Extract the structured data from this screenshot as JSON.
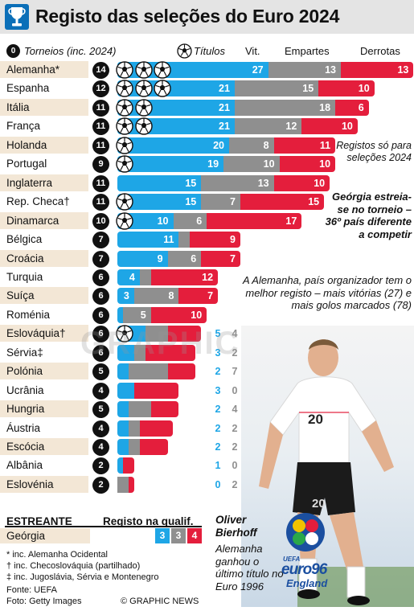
{
  "header": {
    "title": "Registo das seleções do Euro 2024"
  },
  "columns": {
    "zero_badge": "0",
    "tournaments": "Torneios (inc. 2024)",
    "titles": "Títulos",
    "wins": "Vit.",
    "draws": "Empartes",
    "losses": "Derrotas"
  },
  "chart_data": {
    "type": "bar",
    "stacked": true,
    "series_colors": {
      "wins": "#1ea6e6",
      "draws": "#8f8f8f",
      "losses": "#e41e3c"
    },
    "rows": [
      {
        "team": "Alemanha*",
        "tournaments": "14",
        "titles": 3,
        "wins": 27,
        "draws": 13,
        "losses": 13
      },
      {
        "team": "Espanha",
        "tournaments": "12",
        "titles": 3,
        "wins": 21,
        "draws": 15,
        "losses": 10
      },
      {
        "team": "Itália",
        "tournaments": "11",
        "titles": 2,
        "wins": 21,
        "draws": 18,
        "losses": 6
      },
      {
        "team": "França",
        "tournaments": "11",
        "titles": 2,
        "wins": 21,
        "draws": 12,
        "losses": 10
      },
      {
        "team": "Holanda",
        "tournaments": "11",
        "titles": 1,
        "wins": 20,
        "draws": 8,
        "losses": 11
      },
      {
        "team": "Portugal",
        "tournaments": "9",
        "titles": 1,
        "wins": 19,
        "draws": 10,
        "losses": 10
      },
      {
        "team": "Inglaterra",
        "tournaments": "11",
        "titles": 0,
        "wins": 15,
        "draws": 13,
        "losses": 10
      },
      {
        "team": "Rep. Checa†",
        "tournaments": "11",
        "titles": 1,
        "wins": 15,
        "draws": 7,
        "losses": 15
      },
      {
        "team": "Dinamarca",
        "tournaments": "10",
        "titles": 1,
        "wins": 10,
        "draws": 6,
        "losses": 17
      },
      {
        "team": "Bélgica",
        "tournaments": "7",
        "titles": 0,
        "wins": 11,
        "draws": 2,
        "losses": 9
      },
      {
        "team": "Croácia",
        "tournaments": "7",
        "titles": 0,
        "wins": 9,
        "draws": 6,
        "losses": 7
      },
      {
        "team": "Turquia",
        "tournaments": "6",
        "titles": 0,
        "wins": 4,
        "draws": 2,
        "losses": 12
      },
      {
        "team": "Suíça",
        "tournaments": "6",
        "titles": 0,
        "wins": 3,
        "draws": 8,
        "losses": 7
      },
      {
        "team": "Roménia",
        "tournaments": "6",
        "titles": 0,
        "wins": 1,
        "draws": 5,
        "losses": 10
      },
      {
        "team": "Eslováquia†",
        "tournaments": "6",
        "titles": 1,
        "wins": 5,
        "draws": 4,
        "losses": 6
      },
      {
        "team": "Sérvia‡",
        "tournaments": "6",
        "titles": 0,
        "wins": 3,
        "draws": 2,
        "losses": 9
      },
      {
        "team": "Polónia",
        "tournaments": "5",
        "titles": 0,
        "wins": 2,
        "draws": 7,
        "losses": 5
      },
      {
        "team": "Ucrânia",
        "tournaments": "4",
        "titles": 0,
        "wins": 3,
        "draws": 0,
        "losses": 8
      },
      {
        "team": "Hungria",
        "tournaments": "5",
        "titles": 0,
        "wins": 2,
        "draws": 4,
        "losses": 5
      },
      {
        "team": "Áustria",
        "tournaments": "4",
        "titles": 0,
        "wins": 2,
        "draws": 2,
        "losses": 6
      },
      {
        "team": "Escócia",
        "tournaments": "4",
        "titles": 0,
        "wins": 2,
        "draws": 2,
        "losses": 5
      },
      {
        "team": "Albânia",
        "tournaments": "2",
        "titles": 0,
        "wins": 1,
        "draws": 0,
        "losses": 2
      },
      {
        "team": "Eslovénia",
        "tournaments": "2",
        "titles": 0,
        "wins": 0,
        "draws": 2,
        "losses": 1
      }
    ],
    "debutant": {
      "team": "Geórgia",
      "wins": 3,
      "draws": 3,
      "losses": 4
    }
  },
  "notes": {
    "registos": "Registos só para seleções 2024",
    "georgia": "Geórgia estreia-se no torneio – 36º país diferente a competir",
    "alemanha": "A Alemanha, país organizador tem o melhor registo – mais vitórias (27) e mais golos marcados (78)"
  },
  "debutant_section": {
    "title": "ESTREANTE",
    "qual_title": "Registo na qualif."
  },
  "footnotes": [
    "* inc. Alemanha Ocidental",
    "† inc. Checoslováquia (partilhado)",
    "‡ inc. Jugoslávia, Sérvia e Montenegro"
  ],
  "photo_caption": {
    "name": "Oliver Bierhoff",
    "text": "Alemanha ganhou o último título no Euro 1996"
  },
  "logo": {
    "line1": "UEFA",
    "line2": "euro96",
    "line3": "England"
  },
  "watermark": "GRAPHIC NEWS",
  "source": "Fonte: UEFA",
  "credit": "Foto: Getty Images",
  "copyright": "© GRAPHIC NEWS"
}
